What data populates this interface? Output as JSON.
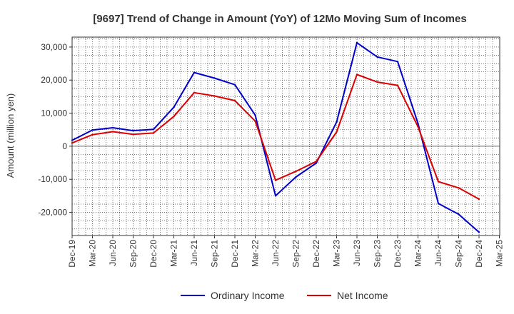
{
  "chart_data": {
    "type": "line",
    "title": "[9697]  Trend of Change in Amount (YoY) of 12Mo Moving Sum of Incomes",
    "xlabel": "",
    "ylabel": "Amount (million yen)",
    "ylim": [
      -27000,
      33000
    ],
    "yticks": [
      30000,
      20000,
      10000,
      0,
      -10000,
      -20000
    ],
    "ytick_labels": [
      "30,000",
      "20,000",
      "10,000",
      "0",
      "-10,000",
      "-20,000"
    ],
    "categories": [
      "Dec-19",
      "Mar-20",
      "Jun-20",
      "Sep-20",
      "Dec-20",
      "Mar-21",
      "Jun-21",
      "Sep-21",
      "Dec-21",
      "Mar-22",
      "Jun-22",
      "Sep-22",
      "Dec-22",
      "Mar-23",
      "Jun-23",
      "Sep-23",
      "Dec-23",
      "Mar-24",
      "Jun-24",
      "Sep-24",
      "Dec-24",
      "Mar-25"
    ],
    "series": [
      {
        "name": "Ordinary Income",
        "color": "#0000cc",
        "values": [
          1800,
          4900,
          5600,
          4700,
          5100,
          11800,
          22300,
          20600,
          18600,
          9400,
          -15000,
          -9300,
          -5100,
          7300,
          31300,
          27000,
          25600,
          6900,
          -17300,
          -20600,
          -26000,
          null
        ]
      },
      {
        "name": "Net Income",
        "color": "#dd0000",
        "values": [
          1000,
          3500,
          4400,
          3600,
          4000,
          9000,
          16200,
          15200,
          13800,
          7600,
          -10300,
          -7600,
          -4600,
          4300,
          21700,
          19400,
          18400,
          5900,
          -10700,
          -12600,
          -16000,
          null
        ]
      }
    ],
    "grid": true,
    "legend_position": "bottom-center"
  }
}
